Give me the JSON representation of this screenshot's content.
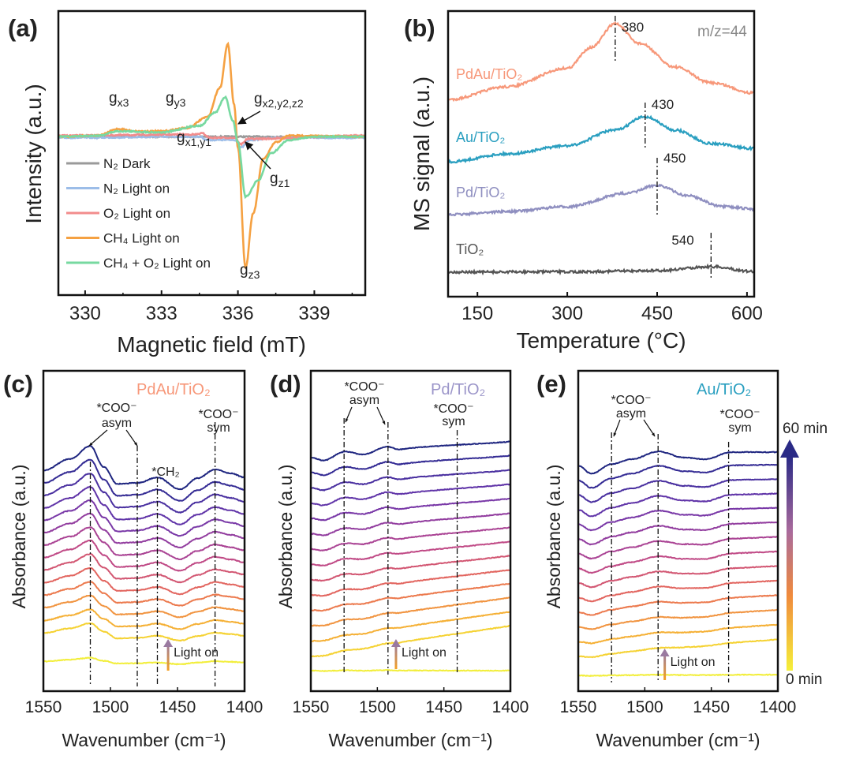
{
  "chart_data": [
    {
      "id": "a",
      "type": "line",
      "panel_label": "(a)",
      "xlabel": "Magnetic field (mT)",
      "ylabel": "Intensity (a.u.)",
      "xlim": [
        328.95,
        341.0
      ],
      "ylim": [
        -1.45,
        1.15
      ],
      "xticks": [
        330,
        333,
        336,
        339
      ],
      "legend_position": "bottom-left",
      "series": [
        {
          "name": "N₂ Dark",
          "color": "#9a9a9a",
          "points": [
            [
              328.95,
              0
            ],
            [
              341,
              0
            ]
          ]
        },
        {
          "name": "N₂ Light on",
          "color": "#9cbde8",
          "points": [
            [
              328.95,
              -0.01
            ],
            [
              334.5,
              0
            ],
            [
              334.8,
              -0.03
            ],
            [
              335.9,
              -0.03
            ],
            [
              336.1,
              -0.1
            ],
            [
              336.5,
              -0.03
            ],
            [
              337.5,
              -0.01
            ],
            [
              341,
              -0.01
            ]
          ]
        },
        {
          "name": "O₂ Light on",
          "color": "#f28c8c",
          "points": [
            [
              328.95,
              0.01
            ],
            [
              334.3,
              0.02
            ],
            [
              334.6,
              0.03
            ],
            [
              334.9,
              -0.01
            ],
            [
              335.9,
              -0.01
            ],
            [
              336.1,
              -0.07
            ],
            [
              336.4,
              -0.02
            ],
            [
              341,
              0.01
            ]
          ]
        },
        {
          "name": "CH₄ Light on",
          "color": "#f5a142",
          "points": [
            [
              328.95,
              0
            ],
            [
              330.5,
              0.01
            ],
            [
              331.3,
              0.07
            ],
            [
              332,
              0.05
            ],
            [
              333,
              0.05
            ],
            [
              334,
              0.08
            ],
            [
              334.8,
              0.18
            ],
            [
              335.3,
              0.45
            ],
            [
              335.6,
              0.85
            ],
            [
              335.85,
              0.3
            ],
            [
              336.0,
              -0.1
            ],
            [
              336.3,
              -1.2
            ],
            [
              336.6,
              -0.7
            ],
            [
              337,
              -0.2
            ],
            [
              337.5,
              -0.05
            ],
            [
              338,
              0.01
            ],
            [
              341,
              0
            ]
          ]
        },
        {
          "name": "CH₄ + O₂ Light on",
          "color": "#77d9a0",
          "points": [
            [
              328.95,
              0
            ],
            [
              330.5,
              0.01
            ],
            [
              331.3,
              0.05
            ],
            [
              333,
              0.04
            ],
            [
              334.5,
              0.1
            ],
            [
              335.1,
              0.22
            ],
            [
              335.5,
              0.36
            ],
            [
              335.8,
              0.15
            ],
            [
              336.0,
              -0.05
            ],
            [
              336.3,
              -0.55
            ],
            [
              336.8,
              -0.4
            ],
            [
              337.3,
              -0.15
            ],
            [
              338,
              -0.03
            ],
            [
              339,
              0
            ],
            [
              341,
              0
            ]
          ]
        }
      ],
      "annotations": {
        "gx3": {
          "base": "g",
          "sub": "x3"
        },
        "gy3": {
          "base": "g",
          "sub": "y3"
        },
        "gx2y2z2": {
          "base": "g",
          "sub": "x2,y2,z2"
        },
        "gx1y1": {
          "base": "g",
          "sub": "x1,y1"
        },
        "gz1": {
          "base": "g",
          "sub": "z1"
        },
        "gz3": {
          "base": "g",
          "sub": "z3"
        }
      }
    },
    {
      "id": "b",
      "type": "line",
      "panel_label": "(b)",
      "xlabel": "Temperature (°C)",
      "ylabel": "MS signal (a.u.)",
      "xlim": [
        101,
        612
      ],
      "ylim": [
        0,
        1
      ],
      "xticks": [
        150,
        300,
        450,
        600
      ],
      "annotation": "m/z=44",
      "series": [
        {
          "name": "PdAu/TiO₂",
          "color": "#f7987a",
          "peak": 380,
          "peak_label": "380",
          "points": [
            [
              101,
              0.69
            ],
            [
              200,
              0.735
            ],
            [
              300,
              0.8
            ],
            [
              340,
              0.873
            ],
            [
              380,
              0.956
            ],
            [
              420,
              0.887
            ],
            [
              480,
              0.804
            ],
            [
              540,
              0.749
            ],
            [
              612,
              0.713
            ]
          ]
        },
        {
          "name": "Au/TiO₂",
          "color": "#2a9fc0",
          "peak": 430,
          "peak_label": "430",
          "points": [
            [
              101,
              0.472
            ],
            [
              200,
              0.5
            ],
            [
              300,
              0.528
            ],
            [
              380,
              0.583
            ],
            [
              430,
              0.63
            ],
            [
              480,
              0.583
            ],
            [
              540,
              0.536
            ],
            [
              612,
              0.519
            ]
          ]
        },
        {
          "name": "Pd/TiO₂",
          "color": "#8f8fc0",
          "peak": 450,
          "peak_label": "450",
          "points": [
            [
              101,
              0.287
            ],
            [
              200,
              0.298
            ],
            [
              300,
              0.315
            ],
            [
              400,
              0.362
            ],
            [
              450,
              0.39
            ],
            [
              500,
              0.354
            ],
            [
              560,
              0.315
            ],
            [
              612,
              0.307
            ]
          ]
        },
        {
          "name": "TiO₂",
          "color": "#555555",
          "peak": 540,
          "peak_label": "540",
          "points": [
            [
              101,
              0.086
            ],
            [
              300,
              0.087
            ],
            [
              450,
              0.091
            ],
            [
              540,
              0.105
            ],
            [
              612,
              0.088
            ]
          ]
        }
      ]
    },
    {
      "id": "c",
      "type": "line",
      "panel_label": "(c)",
      "sample": "PdAu/TiO₂",
      "sample_color": "#f7987a",
      "xlabel": "Wavenumber (cm⁻¹)",
      "ylabel": "Absorbance (a.u.)",
      "xlim": [
        1550,
        1400
      ],
      "ylim": [
        0,
        100
      ],
      "xticks": [
        1550,
        1500,
        1450,
        1400
      ],
      "profile": [
        [
          1550,
          5.9
        ],
        [
          1530,
          9.5
        ],
        [
          1515,
          13.5
        ],
        [
          1505,
          7
        ],
        [
          1495,
          1.7
        ],
        [
          1480,
          2
        ],
        [
          1465,
          3.7
        ],
        [
          1448,
          0
        ],
        [
          1435,
          3.5
        ],
        [
          1422,
          6.2
        ],
        [
          1410,
          5
        ],
        [
          1400,
          3.7
        ]
      ],
      "baselines": [
        8.4,
        15.8,
        19.4,
        23.1,
        26.7,
        30.3,
        34.0,
        37.6,
        41.2,
        44.9,
        48.5,
        52.1,
        55.8,
        59.4,
        63.0
      ],
      "profile_scale": [
        0.15,
        0.4,
        0.45,
        0.5,
        0.55,
        0.6,
        0.65,
        0.7,
        0.74,
        0.78,
        0.82,
        0.86,
        0.9,
        0.95,
        1.0
      ],
      "tilt": [
        0,
        0,
        0,
        0,
        0,
        0,
        0,
        0,
        0,
        0,
        0,
        0,
        0,
        0,
        0
      ],
      "markers": [
        {
          "x": 1515,
          "label": "*COO⁻",
          "sub": "asym"
        },
        {
          "x": 1480
        },
        {
          "x": 1465,
          "label": "*CH₂"
        },
        {
          "x": 1422,
          "label": "*COO⁻",
          "sub": "sym"
        }
      ],
      "light_on": {
        "x": 1457,
        "label": "Light on"
      }
    },
    {
      "id": "d",
      "type": "line",
      "panel_label": "(d)",
      "sample": "Pd/TiO₂",
      "sample_color": "#9b95c9",
      "xlabel": "Wavenumber (cm⁻¹)",
      "ylabel": "Absorbance (a.u.)",
      "xlim": [
        1550,
        1400
      ],
      "ylim": [
        0,
        100
      ],
      "xticks": [
        1550,
        1500,
        1450,
        1400
      ],
      "profile": [
        [
          1550,
          0
        ],
        [
          1540,
          -1.2
        ],
        [
          1525,
          1.0
        ],
        [
          1510,
          -0.3
        ],
        [
          1493,
          1.5
        ],
        [
          1483,
          0.3
        ],
        [
          1470,
          0.5
        ],
        [
          1400,
          0
        ]
      ],
      "baselines": [
        6.4,
        10.8,
        15.6,
        20.4,
        25.2,
        29.9,
        34.7,
        39.5,
        44.3,
        49.1,
        53.9,
        58.6,
        63.4,
        68.2,
        72.9
      ],
      "profile_scale": [
        0.1,
        0.3,
        0.35,
        0.4,
        0.45,
        0.5,
        0.55,
        0.6,
        0.65,
        0.7,
        0.75,
        0.8,
        0.85,
        0.9,
        1.0
      ],
      "tilt": [
        0,
        9.6,
        9.2,
        8.8,
        8.4,
        8,
        7.6,
        7.2,
        6.8,
        6.4,
        6.2,
        6,
        5.6,
        5.3,
        5
      ],
      "markers": [
        {
          "x": 1525,
          "label": "*COO⁻",
          "sub": "asym"
        },
        {
          "x": 1492
        },
        {
          "x": 1440,
          "label": "*COO⁻",
          "sub": "sym"
        }
      ],
      "light_on": {
        "x": 1486,
        "label": "Light on"
      }
    },
    {
      "id": "e",
      "type": "line",
      "panel_label": "(e)",
      "sample": "Au/TiO₂",
      "sample_color": "#2a9fc0",
      "xlabel": "Wavenumber (cm⁻¹)",
      "ylabel": "Absorbance (a.u.)",
      "xlim": [
        1550,
        1400
      ],
      "ylim": [
        0,
        100
      ],
      "xticks": [
        1550,
        1500,
        1450,
        1400
      ],
      "profile": [
        [
          1550,
          0
        ],
        [
          1540,
          -2.5
        ],
        [
          1525,
          0.5
        ],
        [
          1510,
          2
        ],
        [
          1490,
          4.4
        ],
        [
          1470,
          2.5
        ],
        [
          1455,
          2
        ],
        [
          1435,
          4.2
        ],
        [
          1400,
          4.2
        ]
      ],
      "baselines": [
        4.9,
        10.8,
        15.4,
        20.0,
        24.6,
        29.1,
        33.7,
        38.3,
        42.9,
        47.5,
        52.1,
        56.6,
        61.2,
        65.8,
        70.4
      ],
      "profile_scale": [
        0.05,
        0.2,
        0.28,
        0.35,
        0.42,
        0.5,
        0.56,
        0.62,
        0.68,
        0.74,
        0.8,
        0.85,
        0.9,
        0.95,
        1.0
      ],
      "tilt": [
        0,
        4.5,
        4.2,
        3.9,
        3.6,
        3.3,
        3,
        2.7,
        2.4,
        2.1,
        1.8,
        1.5,
        1.2,
        0.9,
        0
      ],
      "markers": [
        {
          "x": 1525,
          "label": "*COO⁻",
          "sub": "asym"
        },
        {
          "x": 1490
        },
        {
          "x": 1437,
          "label": "*COO⁻",
          "sub": "sym"
        }
      ],
      "light_on": {
        "x": 1485,
        "label": "Light on"
      }
    }
  ],
  "time_colorbar": {
    "top_label": "60 min",
    "bottom_label": "0 min",
    "colors": [
      "#f2ee3a",
      "#f5d232",
      "#f5b035",
      "#f19440",
      "#ec7a4e",
      "#e2655f",
      "#d25672",
      "#c04a86",
      "#aa4394",
      "#923d9f",
      "#7938a7",
      "#6034a8",
      "#4a30a0",
      "#342b94",
      "#1f2680"
    ]
  }
}
